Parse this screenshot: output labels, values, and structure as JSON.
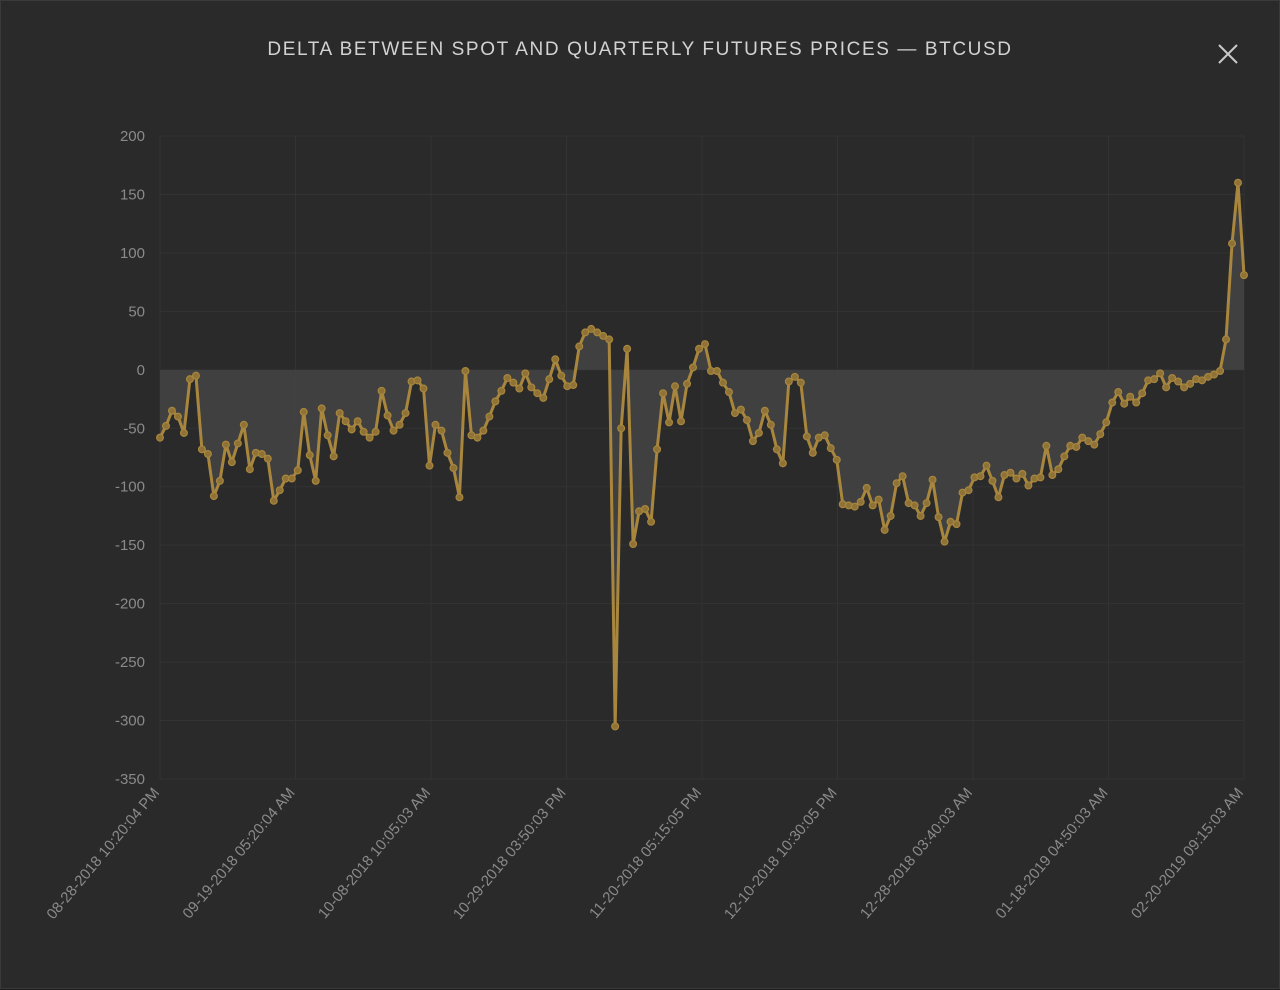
{
  "modal": {
    "title": "DELTA BETWEEN SPOT AND QUARTERLY FUTURES PRICES — BTCUSD"
  },
  "colors": {
    "background": "#2a2a2a",
    "line": "#a8863e",
    "area": "#444444",
    "grid": "#333333",
    "text": "#8a8a8a"
  },
  "chart_data": {
    "type": "area",
    "title": "DELTA BETWEEN SPOT AND QUARTERLY FUTURES PRICES — BTCUSD",
    "xlabel": "",
    "ylabel": "",
    "ylim": [
      -350,
      200
    ],
    "yticks": [
      200,
      150,
      100,
      50,
      0,
      -50,
      -100,
      -150,
      -200,
      -250,
      -300,
      -350
    ],
    "xtick_labels": [
      "08-28-2018 10:20:04 PM",
      "09-19-2018 05:20:04 AM",
      "10-08-2018 10:05:03 AM",
      "10-29-2018 03:50:03 PM",
      "11-20-2018 05:15:05 PM",
      "12-10-2018 10:30:05 PM",
      "12-28-2018 03:40:03 AM",
      "01-18-2019 04:50:03 AM",
      "02-20-2019 09:15:03 AM"
    ],
    "grid": true,
    "legend": "none",
    "series": [
      {
        "values": [
          -58,
          -48,
          -35,
          -40,
          -54,
          -8,
          -5,
          -68,
          -72,
          -108,
          -95,
          -64,
          -79,
          -63,
          -47,
          -85,
          -71,
          -72,
          -76,
          -112,
          -103,
          -93,
          -93,
          -86,
          -36,
          -73,
          -95,
          -33,
          -56,
          -74,
          -37,
          -44,
          -51,
          -44,
          -53,
          -58,
          -53,
          -18,
          -39,
          -52,
          -47,
          -37,
          -10,
          -9,
          -16,
          -82,
          -47,
          -52,
          -71,
          -84,
          -109,
          -1,
          -56,
          -58,
          -52,
          -40,
          -27,
          -18,
          -7,
          -11,
          -16,
          -3,
          -15,
          -20,
          -24,
          -8,
          9,
          -5,
          -14,
          -13,
          20,
          32,
          35,
          32,
          29,
          26,
          -305,
          -50,
          18,
          -149,
          -121,
          -119,
          -130,
          -68,
          -20,
          -45,
          -14,
          -44,
          -12,
          2,
          18,
          22,
          -1,
          -1,
          -11,
          -19,
          -37,
          -34,
          -43,
          -61,
          -54,
          -35,
          -47,
          -68,
          -80,
          -10,
          -6,
          -11,
          -57,
          -71,
          -58,
          -56,
          -67,
          -77,
          -115,
          -116,
          -117,
          -113,
          -101,
          -116,
          -111,
          -137,
          -125,
          -97,
          -91,
          -114,
          -116,
          -125,
          -114,
          -94,
          -126,
          -147,
          -130,
          -132,
          -105,
          -103,
          -92,
          -91,
          -82,
          -95,
          -109,
          -90,
          -88,
          -93,
          -89,
          -99,
          -93,
          -92,
          -65,
          -90,
          -85,
          -74,
          -65,
          -66,
          -58,
          -61,
          -64,
          -55,
          -45,
          -28,
          -19,
          -29,
          -23,
          -28,
          -20,
          -9,
          -8,
          -3,
          -15,
          -7,
          -10,
          -15,
          -12,
          -8,
          -9,
          -6,
          -4,
          -1,
          26,
          108,
          160,
          81
        ]
      }
    ]
  }
}
